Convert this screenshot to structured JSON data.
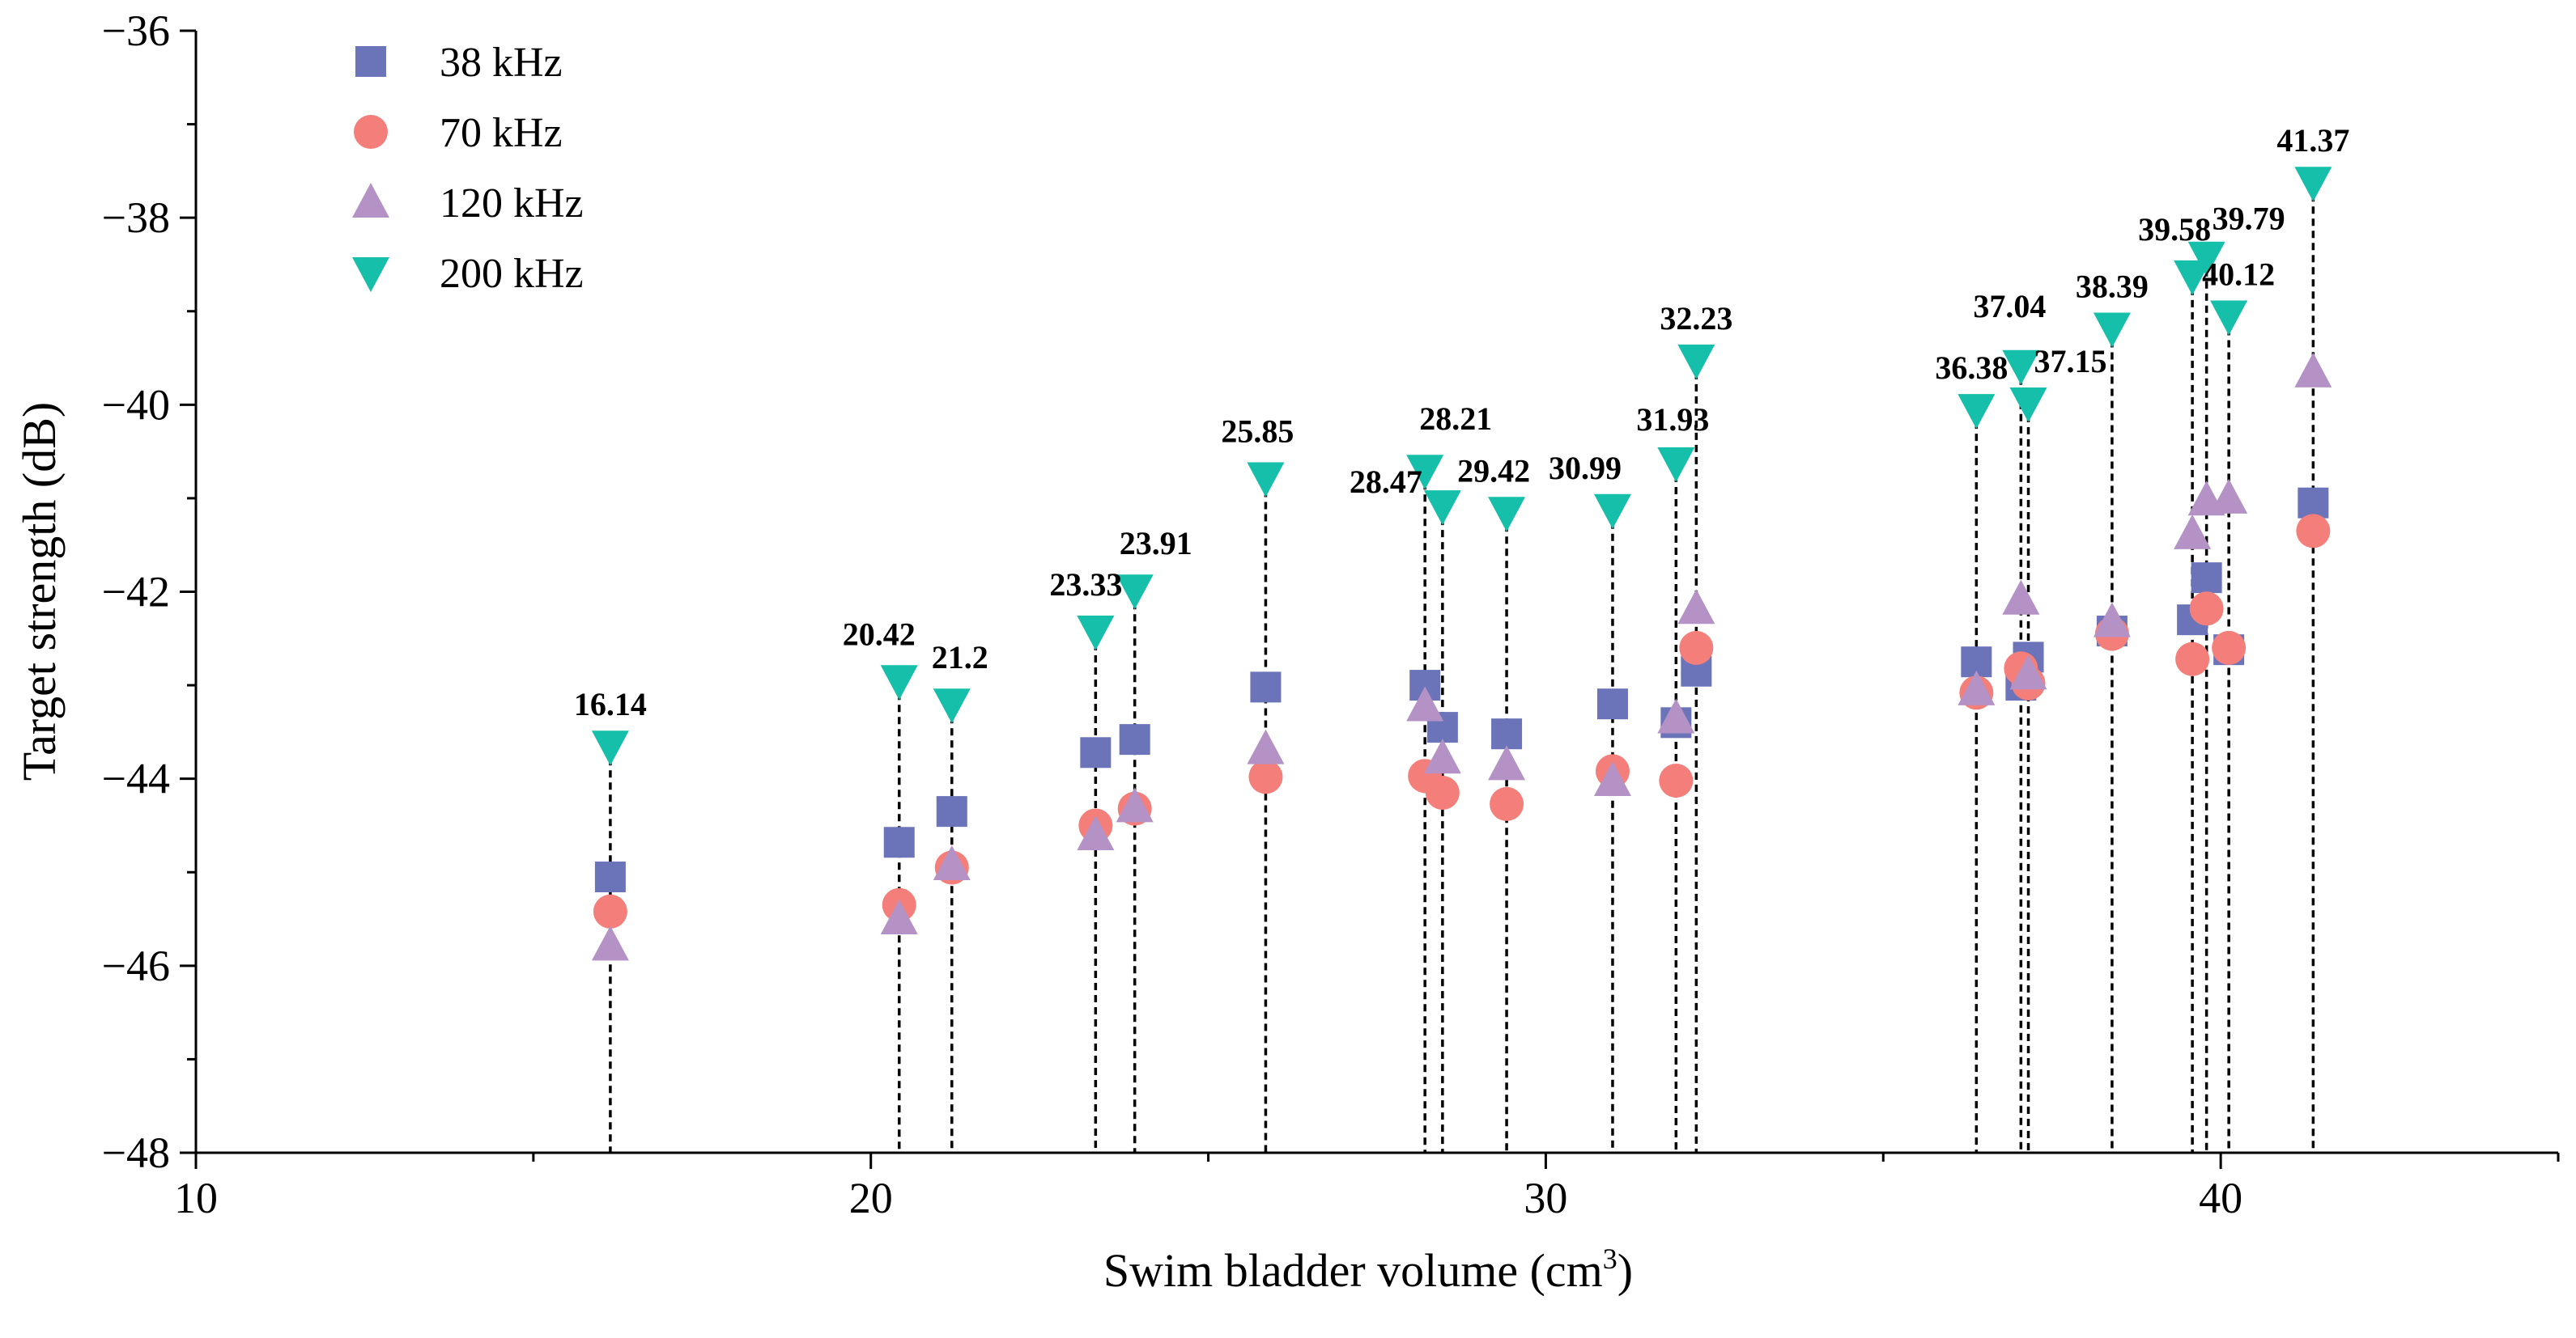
{
  "chart_data": {
    "type": "scatter",
    "title": "",
    "xlabel": "Swim bladder volume (cm",
    "xlabel_sup": "3",
    "xlabel_tail": ")",
    "ylabel": "Target strength (dB)",
    "xlim": [
      10,
      45
    ],
    "ylim": [
      -48,
      -36
    ],
    "x_ticks": [
      10,
      20,
      30,
      40
    ],
    "x_tick_labels": [
      "10",
      "20",
      "30",
      "40"
    ],
    "y_ticks": [
      -48,
      -46,
      -44,
      -42,
      -40,
      -38,
      -36
    ],
    "y_tick_labels": [
      "−48",
      "−46",
      "−44",
      "−42",
      "−40",
      "−38",
      "−36"
    ],
    "legend_position": "top-left",
    "x": [
      16.14,
      20.42,
      21.2,
      23.33,
      23.91,
      25.85,
      28.21,
      28.47,
      29.42,
      30.99,
      31.93,
      32.23,
      36.38,
      37.04,
      37.15,
      38.39,
      39.58,
      39.79,
      40.12,
      41.37
    ],
    "annotations": [
      "16.14",
      "20.42",
      "21.2",
      "23.33",
      "23.91",
      "25.85",
      "28.21",
      "28.47",
      "29.42",
      "30.99",
      "31.93",
      "32.23",
      "36.38",
      "37.04",
      "37.15",
      "38.39",
      "39.58",
      "39.79",
      "40.12",
      "41.37"
    ],
    "series": [
      {
        "name": "38 kHz",
        "marker": "square",
        "color": "#6b74b8",
        "values": [
          -45.05,
          -44.68,
          -44.35,
          -43.72,
          -43.58,
          -43.02,
          -43.0,
          -43.45,
          -43.52,
          -43.2,
          -43.4,
          -42.85,
          -42.75,
          -43.0,
          -42.7,
          -42.42,
          -42.3,
          -41.85,
          -42.62,
          -41.05
        ]
      },
      {
        "name": "70 kHz",
        "marker": "circle",
        "color": "#f47e7a",
        "values": [
          -45.42,
          -45.35,
          -44.95,
          -44.5,
          -44.32,
          -43.98,
          -43.97,
          -44.15,
          -44.27,
          -43.92,
          -44.02,
          -42.6,
          -43.08,
          -42.82,
          -42.98,
          -42.45,
          -42.72,
          -42.18,
          -42.6,
          -41.35
        ]
      },
      {
        "name": "120 kHz",
        "marker": "triangle-up",
        "color": "#b592c5",
        "values": [
          -45.78,
          -45.5,
          -44.92,
          -44.6,
          -44.3,
          -43.68,
          -43.22,
          -43.78,
          -43.85,
          -44.02,
          -43.35,
          -42.18,
          -43.05,
          -42.08,
          -42.88,
          -42.32,
          -41.38,
          -41.02,
          -41.0,
          -39.65
        ]
      },
      {
        "name": "200 kHz",
        "marker": "triangle-down",
        "color": "#15bfa9",
        "values": [
          -43.65,
          -42.95,
          -43.2,
          -42.42,
          -41.98,
          -40.78,
          -40.7,
          -41.08,
          -41.15,
          -41.12,
          -40.62,
          -39.52,
          -40.05,
          -39.58,
          -39.98,
          -39.18,
          -38.62,
          -38.42,
          -39.05,
          -37.62
        ]
      }
    ]
  }
}
